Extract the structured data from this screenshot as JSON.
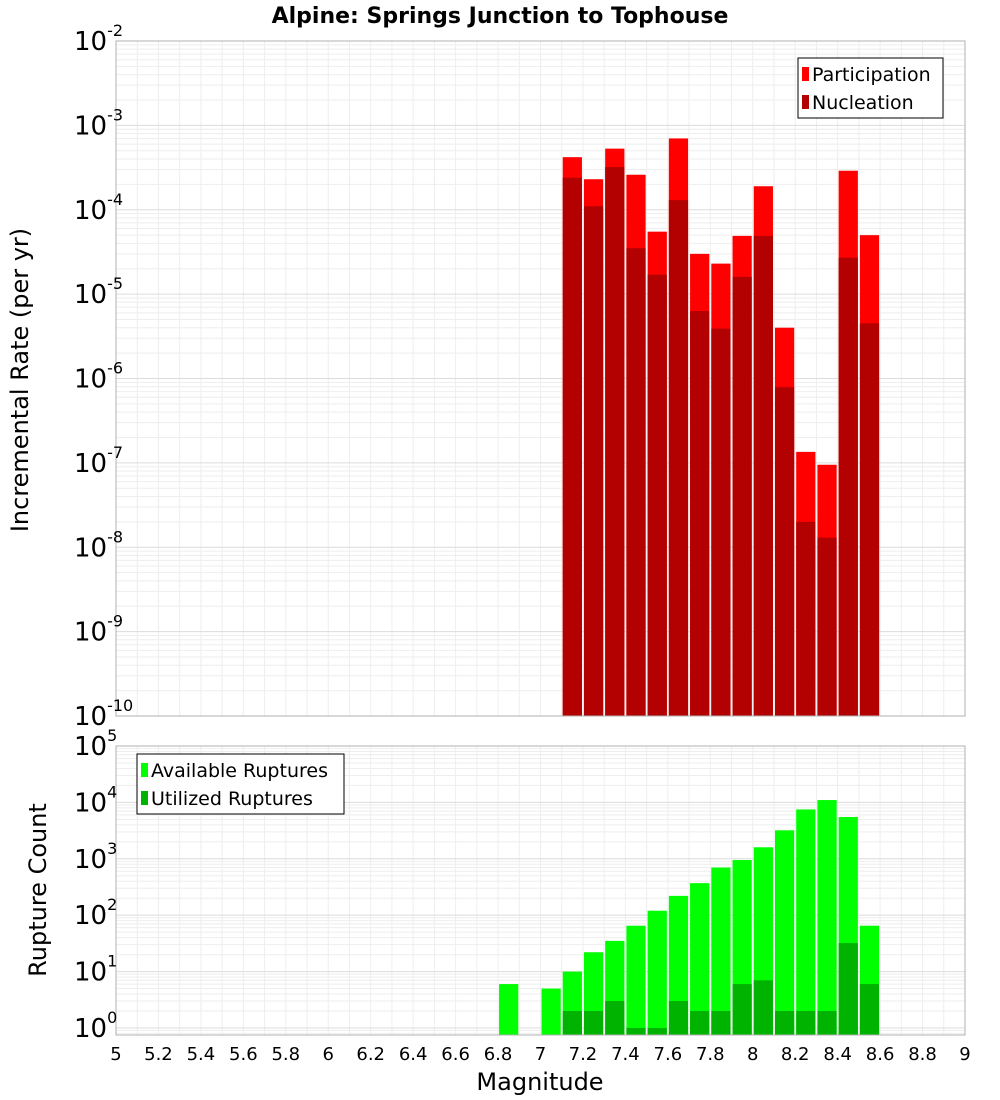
{
  "chart_data": [
    {
      "type": "bar",
      "title": "Alpine: Springs Junction to Tophouse",
      "ylabel": "Incremental Rate (per yr)",
      "xlabel": "",
      "xlim": [
        5,
        9
      ],
      "ylim": [
        1e-10,
        0.01
      ],
      "yscale": "log",
      "grid": true,
      "legend_position": "top-right",
      "bin_width": 0.1,
      "x": [
        7.15,
        7.25,
        7.35,
        7.45,
        7.55,
        7.65,
        7.75,
        7.85,
        7.95,
        8.05,
        8.15,
        8.25,
        8.35,
        8.45,
        8.55
      ],
      "series": [
        {
          "name": "Participation",
          "color": "#ff0000",
          "values": [
            0.00042,
            0.00023,
            0.00053,
            0.00026,
            5.5e-05,
            0.0007,
            3e-05,
            2.3e-05,
            4.9e-05,
            0.00019,
            4e-06,
            1.35e-07,
            9.5e-08,
            0.00029,
            5e-05
          ]
        },
        {
          "name": "Nucleation",
          "color": "#b30000",
          "values": [
            0.00024,
            0.00011,
            0.00032,
            3.5e-05,
            1.7e-05,
            0.00013,
            6.3e-06,
            3.9e-06,
            1.6e-05,
            4.9e-05,
            7.9e-07,
            2e-08,
            1.3e-08,
            2.7e-05,
            4.5e-06
          ]
        }
      ]
    },
    {
      "type": "bar",
      "title": "",
      "ylabel": "Rupture Count",
      "xlabel": "Magnitude",
      "xlim": [
        5,
        9
      ],
      "ylim": [
        0.75,
        100000
      ],
      "yscale": "log",
      "grid": true,
      "legend_position": "top-left",
      "bin_width": 0.1,
      "x": [
        6.85,
        7.05,
        7.15,
        7.25,
        7.35,
        7.45,
        7.55,
        7.65,
        7.75,
        7.85,
        7.95,
        8.05,
        8.15,
        8.25,
        8.35,
        8.45,
        8.55
      ],
      "xtick_labels": [
        "5",
        "5.2",
        "5.4",
        "5.6",
        "5.8",
        "6",
        "6.2",
        "6.4",
        "6.6",
        "6.8",
        "7",
        "7.2",
        "7.4",
        "7.6",
        "7.8",
        "8",
        "8.2",
        "8.4",
        "8.6",
        "8.8",
        "9"
      ],
      "series": [
        {
          "name": "Available Ruptures",
          "color": "#00ff00",
          "values": [
            6,
            5,
            10,
            22,
            35,
            65,
            120,
            220,
            370,
            700,
            950,
            1600,
            3200,
            7500,
            11000,
            5500,
            65
          ]
        },
        {
          "name": "Utilized Ruptures",
          "color": "#00b300",
          "values": [
            null,
            null,
            2,
            2,
            3,
            1,
            1,
            3,
            2,
            2,
            6,
            7,
            2,
            2,
            2,
            32,
            6
          ]
        }
      ]
    }
  ]
}
